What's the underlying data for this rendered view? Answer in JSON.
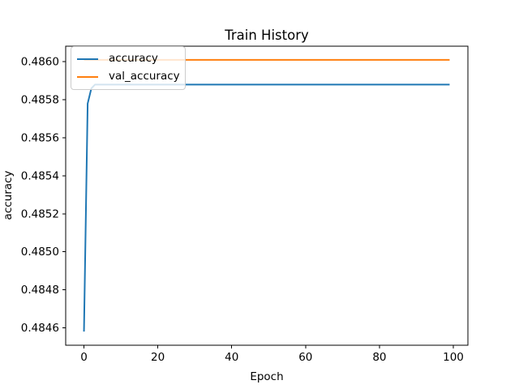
{
  "chart_data": {
    "type": "line",
    "title": "Train History",
    "xlabel": "Epoch",
    "ylabel": "accuracy",
    "xlim": [
      -4.95,
      103.95
    ],
    "ylim": [
      0.484508,
      0.486082
    ],
    "xticks": [
      0,
      20,
      40,
      60,
      80,
      100
    ],
    "yticks": [
      0.4846,
      0.4848,
      0.485,
      0.4852,
      0.4854,
      0.4856,
      0.4858,
      0.486
    ],
    "ytick_decimals": 4,
    "grid": false,
    "legend_position": "upper-left",
    "x_range": [
      0,
      99
    ],
    "series": [
      {
        "name": "accuracy",
        "color": "#1f77b4",
        "points": [
          [
            0,
            0.48458
          ],
          [
            1,
            0.48578
          ],
          [
            2,
            0.48586
          ],
          [
            3,
            0.48588
          ],
          [
            99,
            0.48588
          ]
        ]
      },
      {
        "name": "val_accuracy",
        "color": "#ff7f0e",
        "points": [
          [
            0,
            0.48601
          ],
          [
            99,
            0.48601
          ]
        ]
      }
    ]
  }
}
